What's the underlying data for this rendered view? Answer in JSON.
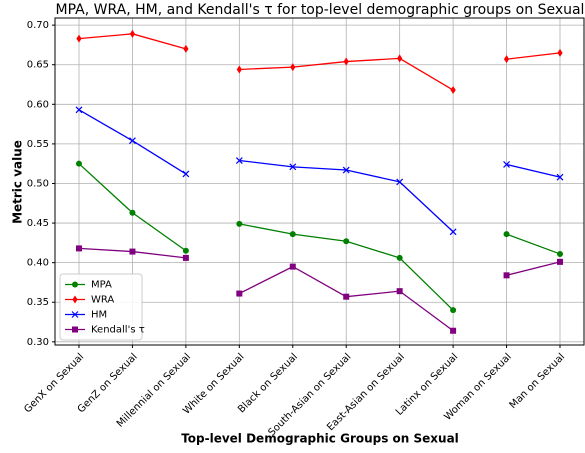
{
  "chart_data": {
    "type": "line",
    "title": "MPA, WRA, HM, and Kendall's τ for top-level demographic groups on Sexual",
    "xlabel": "Top-level Demographic Groups on Sexual",
    "ylabel": "Metric value",
    "categories": [
      [
        "GenX on Sexual",
        "GenZ on Sexual",
        "Millennial on Sexual"
      ],
      [
        "White on Sexual",
        "Black on Sexual",
        "South-Asian on Sexual",
        "East-Asian on Sexual",
        "Latinx on Sexual"
      ],
      [
        "Woman on Sexual",
        "Man on Sexual"
      ]
    ],
    "series": [
      {
        "name": "MPA",
        "color": "#008000",
        "marker": "circle",
        "values": [
          [
            0.525,
            0.463,
            0.415
          ],
          [
            0.449,
            0.436,
            0.427,
            0.406,
            0.34
          ],
          [
            0.436,
            0.411
          ]
        ]
      },
      {
        "name": "WRA",
        "color": "#ff0000",
        "marker": "diamond",
        "values": [
          [
            0.683,
            0.689,
            0.67
          ],
          [
            0.644,
            0.647,
            0.654,
            0.658,
            0.618
          ],
          [
            0.657,
            0.665
          ]
        ]
      },
      {
        "name": "HM",
        "color": "#0000ff",
        "marker": "x",
        "values": [
          [
            0.593,
            0.554,
            0.512
          ],
          [
            0.529,
            0.521,
            0.517,
            0.502,
            0.439
          ],
          [
            0.524,
            0.508
          ]
        ]
      },
      {
        "name": "Kendall's τ",
        "color": "#800080",
        "marker": "square",
        "values": [
          [
            0.418,
            0.414,
            0.406
          ],
          [
            0.361,
            0.395,
            0.357,
            0.364,
            0.314
          ],
          [
            0.384,
            0.401
          ]
        ]
      }
    ],
    "ylim": [
      0.296,
      0.709
    ],
    "yticks": [
      {
        "value": 0.3,
        "label": "0.30"
      },
      {
        "value": 0.35,
        "label": "0.35"
      },
      {
        "value": 0.4,
        "label": "0.40"
      },
      {
        "value": 0.45,
        "label": "0.45"
      },
      {
        "value": 0.5,
        "label": "0.50"
      },
      {
        "value": 0.55,
        "label": "0.55"
      },
      {
        "value": 0.6,
        "label": "0.60"
      },
      {
        "value": 0.65,
        "label": "0.65"
      },
      {
        "value": 0.7,
        "label": "0.70"
      }
    ],
    "grid": true,
    "legend": "lower left"
  }
}
